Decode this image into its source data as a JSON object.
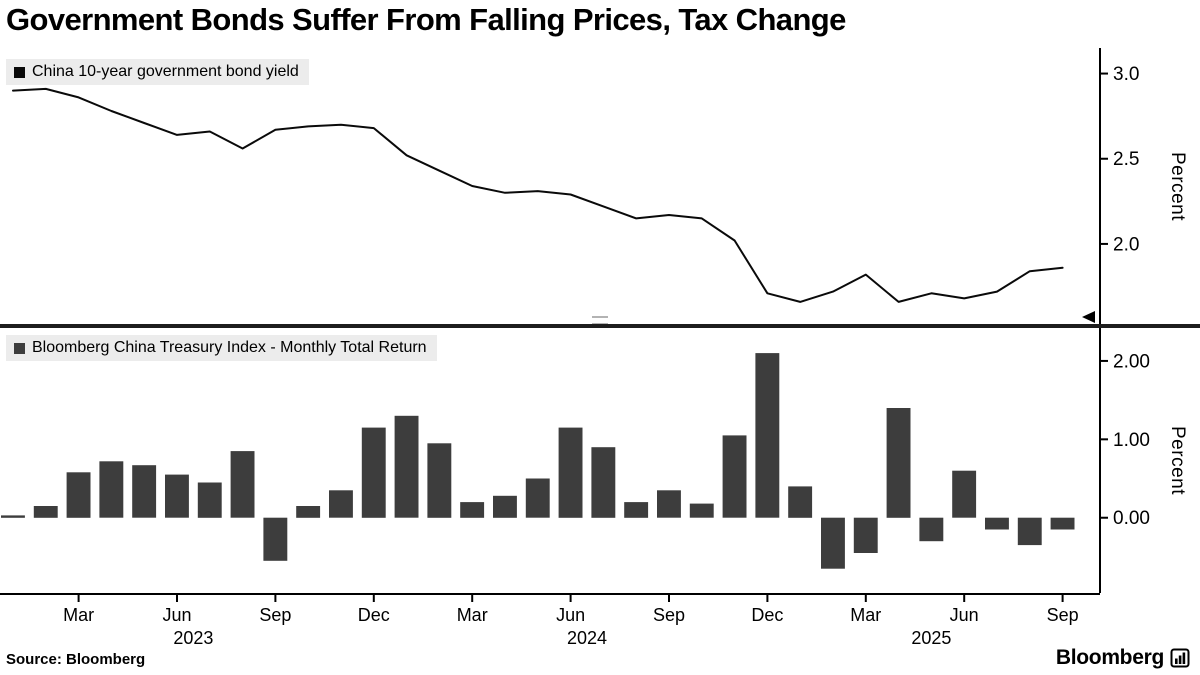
{
  "title": "Government Bonds Suffer From Falling Prices, Tax Change",
  "source": "Source: Bloomberg",
  "brand": "Bloomberg",
  "colors": {
    "line": "#0a0a0a",
    "bar": "#3d3d3d",
    "legend_bg": "#ececec",
    "axis": "#000000"
  },
  "x_axis": {
    "ticks": [
      {
        "index": 2,
        "label": "Mar"
      },
      {
        "index": 5,
        "label": "Jun"
      },
      {
        "index": 8,
        "label": "Sep"
      },
      {
        "index": 11,
        "label": "Dec"
      },
      {
        "index": 14,
        "label": "Mar"
      },
      {
        "index": 17,
        "label": "Jun"
      },
      {
        "index": 20,
        "label": "Sep"
      },
      {
        "index": 23,
        "label": "Dec"
      },
      {
        "index": 26,
        "label": "Mar"
      },
      {
        "index": 29,
        "label": "Jun"
      },
      {
        "index": 32,
        "label": "Sep"
      }
    ],
    "years": [
      {
        "label": "2023",
        "start": 0,
        "end": 11
      },
      {
        "label": "2024",
        "start": 12,
        "end": 23
      },
      {
        "label": "2025",
        "start": 24,
        "end": 32
      }
    ]
  },
  "chart_data": [
    {
      "type": "line",
      "title": "China 10-year government bond yield",
      "ylabel": "Percent",
      "legend_position": "top-left",
      "grid": false,
      "ylim": [
        1.53,
        3.15
      ],
      "yticks": [
        {
          "value": 3.0,
          "label": "3.0"
        },
        {
          "value": 2.5,
          "label": "2.5"
        },
        {
          "value": 2.0,
          "label": "2.0"
        }
      ],
      "color": "#0a0a0a",
      "x": [
        "2023-01",
        "2023-02",
        "2023-03",
        "2023-04",
        "2023-05",
        "2023-06",
        "2023-07",
        "2023-08",
        "2023-09",
        "2023-10",
        "2023-11",
        "2023-12",
        "2024-01",
        "2024-02",
        "2024-03",
        "2024-04",
        "2024-05",
        "2024-06",
        "2024-07",
        "2024-08",
        "2024-09",
        "2024-10",
        "2024-11",
        "2024-12",
        "2025-01",
        "2025-02",
        "2025-03",
        "2025-04",
        "2025-05",
        "2025-06",
        "2025-07",
        "2025-08",
        "2025-09"
      ],
      "values": [
        2.9,
        2.91,
        2.86,
        2.78,
        2.71,
        2.64,
        2.66,
        2.56,
        2.67,
        2.69,
        2.7,
        2.68,
        2.52,
        2.43,
        2.34,
        2.3,
        2.31,
        2.29,
        2.22,
        2.15,
        2.17,
        2.15,
        2.02,
        1.71,
        1.66,
        1.72,
        1.82,
        1.66,
        1.71,
        1.68,
        1.72,
        1.84,
        1.86
      ]
    },
    {
      "type": "bar",
      "title": "Bloomberg China Treasury Index - Monthly Total Return",
      "ylabel": "Percent",
      "legend_position": "top-left",
      "grid": false,
      "ylim": [
        -0.96,
        2.42
      ],
      "yticks": [
        {
          "value": 2.0,
          "label": "2.00"
        },
        {
          "value": 1.0,
          "label": "1.00"
        },
        {
          "value": 0.0,
          "label": "0.00"
        }
      ],
      "color": "#3d3d3d",
      "x": [
        "2023-01",
        "2023-02",
        "2023-03",
        "2023-04",
        "2023-05",
        "2023-06",
        "2023-07",
        "2023-08",
        "2023-09",
        "2023-10",
        "2023-11",
        "2023-12",
        "2024-01",
        "2024-02",
        "2024-03",
        "2024-04",
        "2024-05",
        "2024-06",
        "2024-07",
        "2024-08",
        "2024-09",
        "2024-10",
        "2024-11",
        "2024-12",
        "2025-01",
        "2025-02",
        "2025-03",
        "2025-04",
        "2025-05",
        "2025-06",
        "2025-07",
        "2025-08",
        "2025-09"
      ],
      "values": [
        0.03,
        0.15,
        0.58,
        0.72,
        0.67,
        0.55,
        0.45,
        0.85,
        -0.55,
        0.15,
        0.35,
        1.15,
        1.3,
        0.95,
        0.2,
        0.28,
        0.5,
        1.15,
        0.9,
        0.2,
        0.35,
        0.18,
        1.05,
        2.1,
        0.4,
        -0.65,
        -0.45,
        1.4,
        -0.3,
        0.6,
        -0.15,
        -0.35,
        -0.15
      ]
    }
  ]
}
